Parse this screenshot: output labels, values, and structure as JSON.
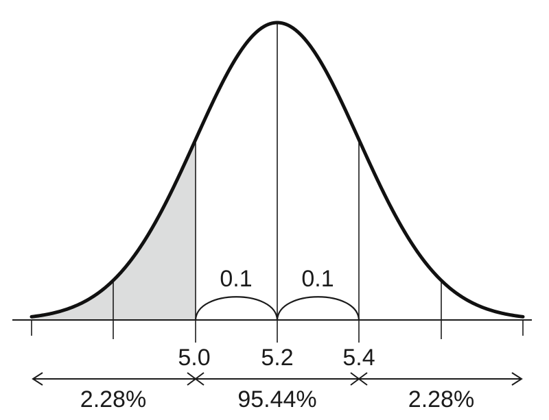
{
  "diagram": {
    "curve": {
      "mean": 5.2,
      "sd": 0.1
    },
    "tick_labels": [
      "5.0",
      "5.2",
      "5.4"
    ],
    "interval_labels": [
      "0.1",
      "0.1"
    ],
    "region_labels": {
      "left": "2.28%",
      "middle": "95.44%",
      "right": "2.28%"
    },
    "shaded_region": "left tail below 5.0",
    "colors": {
      "curve": "#111111",
      "shade": "#dcdddd",
      "line": "#1a1a1a"
    }
  }
}
